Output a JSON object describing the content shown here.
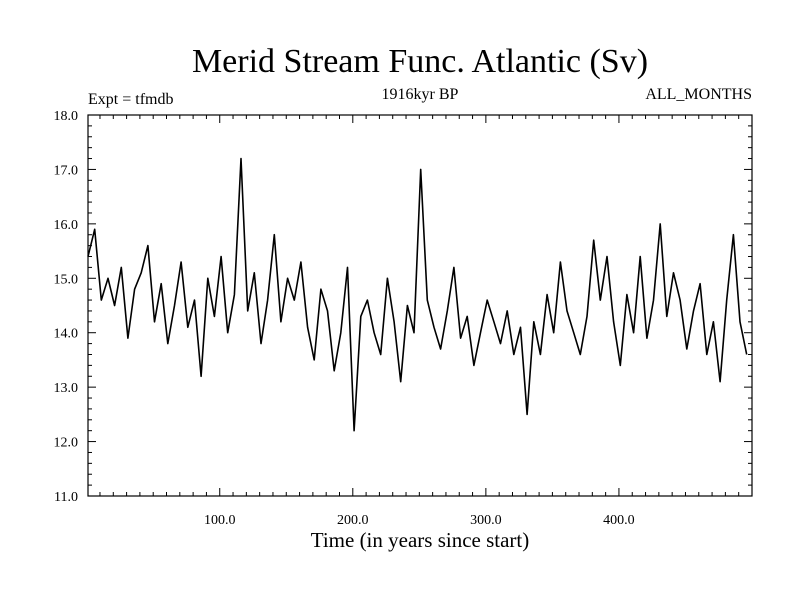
{
  "chart_data": {
    "type": "line",
    "title": "Merid Stream Func. Atlantic (Sv)",
    "subtitle_left": "Expt = tfmdb",
    "subtitle_center": "1916kyr BP",
    "subtitle_right": "ALL_MONTHS",
    "xlabel": "Time (in years since start)",
    "ylabel": "",
    "xlim": [
      1,
      500
    ],
    "ylim": [
      11.0,
      18.0
    ],
    "xticks": [
      100,
      200,
      300,
      400
    ],
    "xtick_labels": [
      "100.0",
      "200.0",
      "300.0",
      "400.0"
    ],
    "yticks": [
      11,
      12,
      13,
      14,
      15,
      16,
      17,
      18
    ],
    "ytick_labels": [
      "11.0",
      "12.0",
      "13.0",
      "14.0",
      "15.0",
      "16.0",
      "17.0",
      "18.0"
    ],
    "grid": false,
    "series": [
      {
        "name": "Merid Stream Func. Atlantic",
        "color": "#000000",
        "x_start": 1,
        "x_step": 5,
        "values": [
          15.4,
          15.9,
          14.6,
          15.0,
          14.5,
          15.2,
          13.9,
          14.8,
          15.1,
          15.6,
          14.2,
          14.9,
          13.8,
          14.5,
          15.3,
          14.1,
          14.6,
          13.2,
          15.0,
          14.3,
          15.4,
          14.0,
          14.7,
          17.2,
          14.4,
          15.1,
          13.8,
          14.6,
          15.8,
          14.2,
          15.0,
          14.6,
          15.3,
          14.1,
          13.5,
          14.8,
          14.4,
          13.3,
          14.0,
          15.2,
          12.2,
          14.3,
          14.6,
          14.0,
          13.6,
          15.0,
          14.2,
          13.1,
          14.5,
          14.0,
          17.0,
          14.6,
          14.1,
          13.7,
          14.4,
          15.2,
          13.9,
          14.3,
          13.4,
          14.0,
          14.6,
          14.2,
          13.8,
          14.4,
          13.6,
          14.1,
          12.5,
          14.2,
          13.6,
          14.7,
          14.0,
          15.3,
          14.4,
          14.0,
          13.6,
          14.3,
          15.7,
          14.6,
          15.4,
          14.2,
          13.4,
          14.7,
          14.0,
          15.4,
          13.9,
          14.6,
          16.0,
          14.3,
          15.1,
          14.6,
          13.7,
          14.4,
          14.9,
          13.6,
          14.2,
          13.1,
          14.6,
          15.8,
          14.2,
          13.6
        ]
      }
    ]
  }
}
